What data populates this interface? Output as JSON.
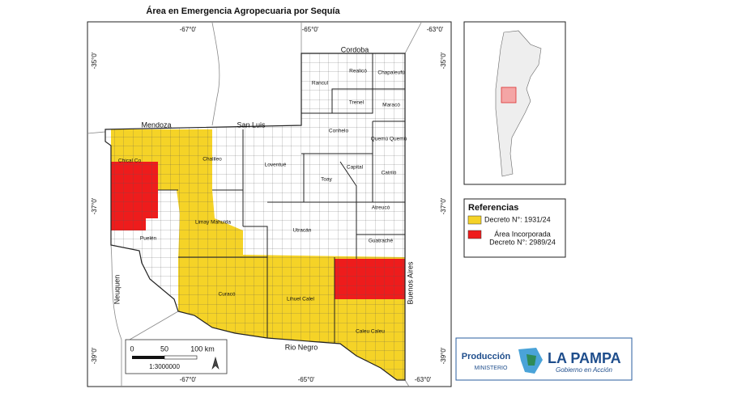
{
  "title": "Área en Emergencia Agropecuaria por Sequía",
  "coordinates": {
    "top": [
      "-67°0'",
      "-65°0'",
      "-63°0'"
    ],
    "bottom": [
      "-67°0'",
      "-65°0'",
      "-63°0'"
    ],
    "left": [
      "-35°0'",
      "-37°0'",
      "-39°0'"
    ],
    "right": [
      "-35°0'",
      "-37°0'",
      "-39°0'"
    ]
  },
  "provinces": [
    "Cordoba",
    "Mendoza",
    "San Luis",
    "Neuquen",
    "Rio Negro",
    "Buenos Aires"
  ],
  "departments": [
    "Rancul",
    "Realicó",
    "Chapaleufú",
    "Trenel",
    "Maracó",
    "Conhelo",
    "Quemú Quemú",
    "Chical Co",
    "Chalileo",
    "Loventué",
    "Toay",
    "Capital",
    "Catriló",
    "Atreucó",
    "Limay Mahuida",
    "Utracán",
    "Guatraché",
    "Puelén",
    "Curacó",
    "Lihuel Calel",
    "Caleu Caleu"
  ],
  "scale": {
    "ticks": [
      "0",
      "50",
      "100 km"
    ],
    "ratio": "1:3000000"
  },
  "legend": {
    "title": "Referencias",
    "items": [
      {
        "color": "#f5d327",
        "lines": [
          "Decreto N°: 1931/24"
        ]
      },
      {
        "color": "#ee1c1c",
        "lines": [
          "Área Incorporada",
          "Decreto N°: 2989/24"
        ]
      }
    ]
  },
  "logo": {
    "ministry": "Producción",
    "ministry_sub": "MINISTERIO",
    "province": "LA PAMPA",
    "slogan": "Gobierno en Acción"
  }
}
